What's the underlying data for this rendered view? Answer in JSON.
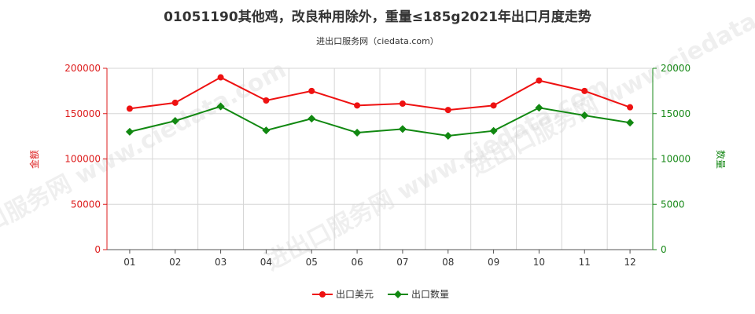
{
  "title": "01051190其他鸡，改良种用除外，重量≤185g2021年出口月度走势",
  "subtitle": "进出口服务网（ciedata.com）",
  "watermark": "进出口服务网 www.ciedata.com",
  "chart_data": {
    "type": "line",
    "categories": [
      "01",
      "02",
      "03",
      "04",
      "05",
      "06",
      "07",
      "08",
      "09",
      "10",
      "11",
      "12"
    ],
    "y_left": {
      "label": "金额",
      "range": [
        0,
        200000
      ],
      "ticks": [
        0,
        50000,
        100000,
        150000,
        200000
      ],
      "color": "#dd1c1c"
    },
    "y_right": {
      "label": "数量",
      "range": [
        0,
        20000
      ],
      "ticks": [
        0,
        5000,
        10000,
        15000,
        20000
      ],
      "color": "#1a8a1a"
    },
    "grid": true,
    "legend_position": "bottom-center",
    "series": [
      {
        "name": "出口美元",
        "axis": "left",
        "color": "#ee1111",
        "values": [
          155500,
          162000,
          190000,
          164500,
          175000,
          159000,
          161000,
          154000,
          159000,
          186500,
          175000,
          157000
        ]
      },
      {
        "name": "出口数量",
        "axis": "right",
        "color": "#118811",
        "values": [
          13000,
          14200,
          15800,
          13150,
          14450,
          12900,
          13300,
          12550,
          13100,
          15650,
          14800,
          14000
        ]
      }
    ]
  }
}
